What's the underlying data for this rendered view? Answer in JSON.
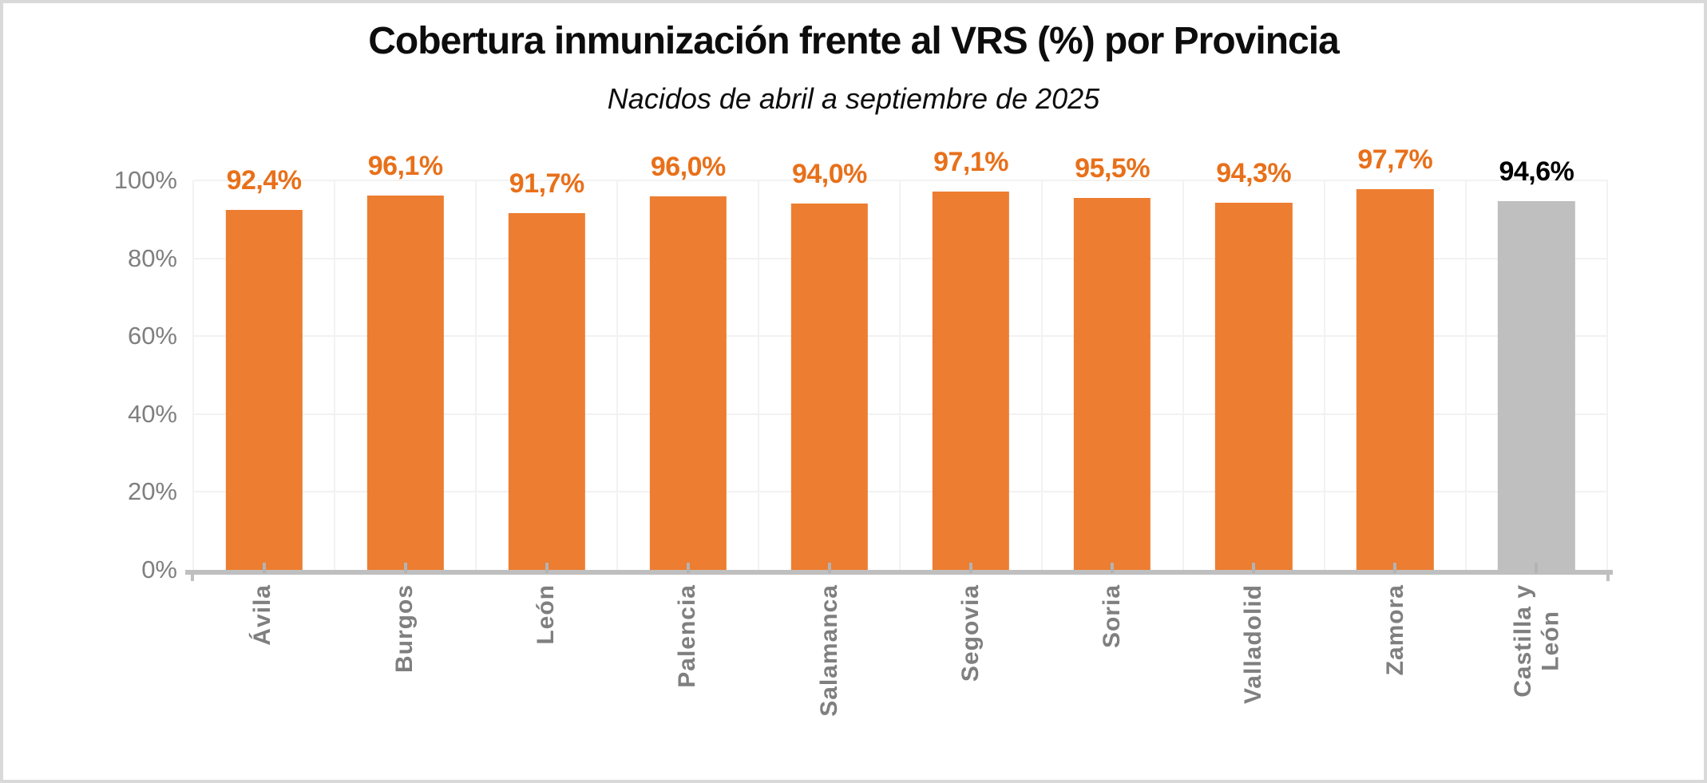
{
  "chart_data": {
    "type": "bar",
    "title": "Cobertura inmunización frente al VRS (%) por Provincia",
    "subtitle": "Nacidos de abril a septiembre de 2025",
    "categories": [
      "Ávila",
      "Burgos",
      "León",
      "Palencia",
      "Salamanca",
      "Segovia",
      "Soria",
      "Valladolid",
      "Zamora",
      "Castilla y\nLeón"
    ],
    "values": [
      92.4,
      96.1,
      91.7,
      96.0,
      94.0,
      97.1,
      95.5,
      94.3,
      97.7,
      94.6
    ],
    "value_labels": [
      "92,4%",
      "96,1%",
      "91,7%",
      "96,0%",
      "94,0%",
      "97,1%",
      "95,5%",
      "94,3%",
      "97,7%",
      "94,6%"
    ],
    "bar_colors": [
      "#ED7D31",
      "#ED7D31",
      "#ED7D31",
      "#ED7D31",
      "#ED7D31",
      "#ED7D31",
      "#ED7D31",
      "#ED7D31",
      "#ED7D31",
      "#BFBFBF"
    ],
    "label_colors": [
      "#E8701A",
      "#E8701A",
      "#E8701A",
      "#E8701A",
      "#E8701A",
      "#E8701A",
      "#E8701A",
      "#E8701A",
      "#E8701A",
      "#000000"
    ],
    "xlabel": "",
    "ylabel": "",
    "ylim": [
      0,
      100
    ],
    "yticks": [
      "0%",
      "20%",
      "40%",
      "60%",
      "80%",
      "100%"
    ],
    "grid": true,
    "legend": "none",
    "colors": {
      "province_bar": "#ED7D31",
      "region_bar": "#BFBFBF",
      "axis_text": "#7F7F7F",
      "gridline": "#F2F2F2",
      "axis_line": "#BFBFBF",
      "frame_border": "#D9D9D9",
      "title_text": "#0d0d0d"
    }
  }
}
